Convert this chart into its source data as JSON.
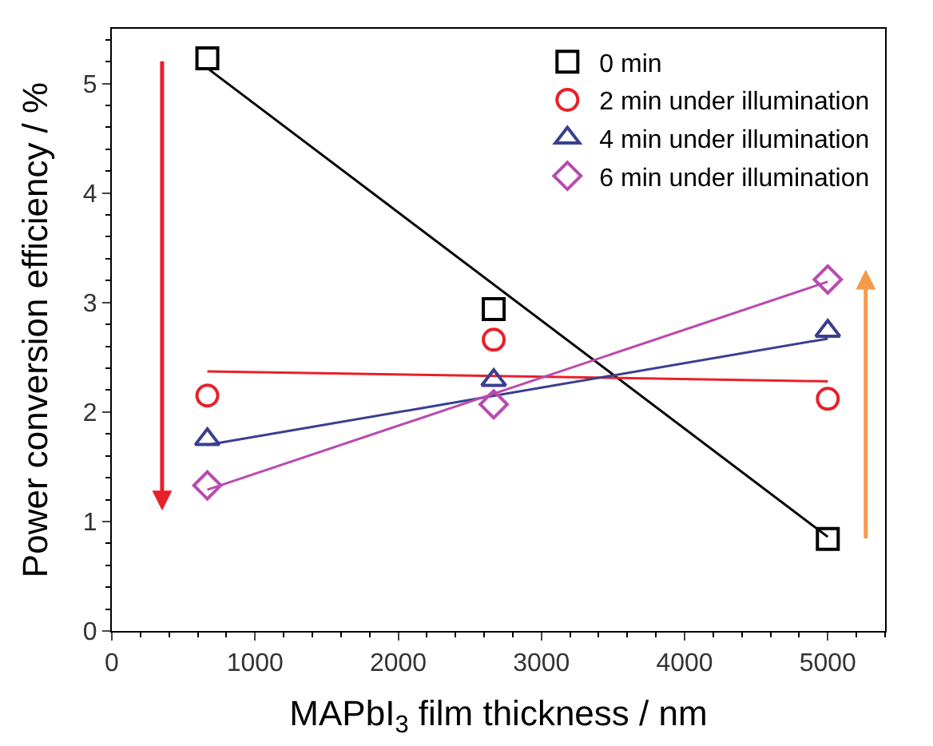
{
  "chart_data": {
    "type": "scatter",
    "xlabel": "MAPbI$_{3}$ film thickness / nm",
    "ylabel": "Power conversion efficiency / %",
    "xlim": [
      0,
      5400
    ],
    "xticks": [
      0,
      1000,
      2000,
      3000,
      4000,
      5000
    ],
    "ylim": [
      0,
      5.5
    ],
    "yticks": [
      0,
      1,
      2,
      3,
      4,
      5
    ],
    "legend": "top right",
    "series": [
      {
        "name": "0 min",
        "color": "#000000",
        "marker": "square",
        "x": [
          667,
          2667,
          5000
        ],
        "values": [
          5.23,
          2.94,
          0.84
        ]
      },
      {
        "name": "2 min under illumination",
        "color": "#e8202a",
        "marker": "circle",
        "x": [
          667,
          2667,
          5000
        ],
        "values": [
          2.15,
          2.66,
          2.12
        ]
      },
      {
        "name": "4 min under illumination",
        "color": "#3a3f8f",
        "marker": "triangle",
        "x": [
          667,
          2667,
          5000
        ],
        "values": [
          1.75,
          2.29,
          2.74
        ]
      },
      {
        "name": "6 min under illumination",
        "color": "#b94ab0",
        "marker": "diamond",
        "x": [
          667,
          2667,
          5000
        ],
        "values": [
          1.33,
          2.07,
          3.21
        ]
      },
      {
        "type": "line",
        "color": "#000000",
        "x": [
          667,
          5000
        ],
        "values": [
          5.14,
          0.86
        ]
      },
      {
        "type": "line",
        "color": "#e8202a",
        "x": [
          667,
          5000
        ],
        "values": [
          2.37,
          2.28
        ]
      },
      {
        "type": "line",
        "color": "#3a3f8f",
        "x": [
          667,
          5000
        ],
        "values": [
          1.7,
          2.67
        ]
      },
      {
        "type": "line",
        "color": "#b94ab0",
        "x": [
          667,
          5000
        ],
        "values": [
          1.29,
          3.19
        ]
      }
    ]
  }
}
